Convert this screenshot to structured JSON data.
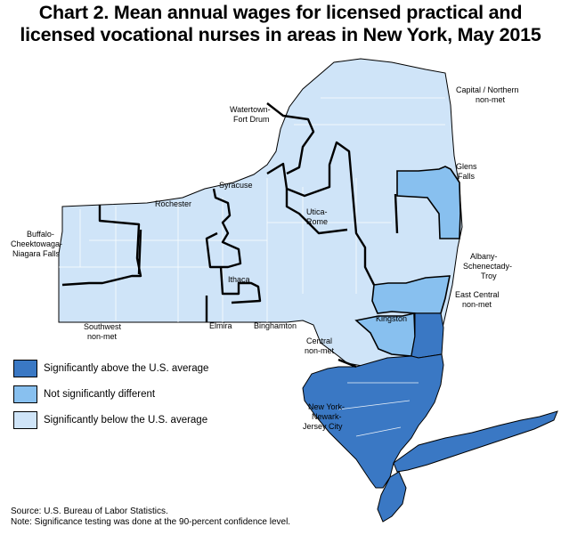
{
  "title": "Chart 2. Mean annual wages for licensed practical and licensed vocational nurses in areas in New York, May 2015",
  "title_line1": "Chart 2. Mean annual wages for licensed practical and",
  "title_line2": "licensed vocational nurses in areas in New York, May 2015",
  "colors": {
    "above": "#3a78c4",
    "not_different": "#88c0ef",
    "below": "#cfe4f8",
    "border": "#000000"
  },
  "legend": [
    {
      "key": "above",
      "label": "Significantly above the U.S. average"
    },
    {
      "key": "not_different",
      "label": "Not significantly different"
    },
    {
      "key": "below",
      "label": "Significantly below the U.S. average"
    }
  ],
  "areas": [
    {
      "id": "capital-northern",
      "lines": [
        "Capital / Northern",
        "non-met"
      ],
      "category": "below"
    },
    {
      "id": "watertown",
      "lines": [
        "Watertown-",
        "Fort Drum"
      ],
      "category": "below"
    },
    {
      "id": "glens-falls",
      "lines": [
        "Glens",
        "Falls"
      ],
      "category": "not_different"
    },
    {
      "id": "syracuse",
      "lines": [
        "Syracuse"
      ],
      "category": "below"
    },
    {
      "id": "rochester",
      "lines": [
        "Rochester"
      ],
      "category": "below"
    },
    {
      "id": "utica-rome",
      "lines": [
        "Utica-",
        "Rome"
      ],
      "category": "below"
    },
    {
      "id": "buffalo",
      "lines": [
        "Buffalo-",
        "Cheektowaga-",
        "Niagara Falls"
      ],
      "category": "below"
    },
    {
      "id": "albany",
      "lines": [
        "Albany-",
        "Schenectady-",
        "Troy"
      ],
      "category": "not_different"
    },
    {
      "id": "ithaca",
      "lines": [
        "Ithaca"
      ],
      "category": "below"
    },
    {
      "id": "east-central",
      "lines": [
        "East Central",
        "non-met"
      ],
      "category": "above"
    },
    {
      "id": "kingston",
      "lines": [
        "Kingston"
      ],
      "category": "not_different"
    },
    {
      "id": "southwest",
      "lines": [
        "Southwest",
        "non-met"
      ],
      "category": "below"
    },
    {
      "id": "elmira",
      "lines": [
        "Elmira"
      ],
      "category": "below"
    },
    {
      "id": "binghamton",
      "lines": [
        "Binghamton"
      ],
      "category": "below"
    },
    {
      "id": "central",
      "lines": [
        "Central",
        "non-met"
      ],
      "category": "below"
    },
    {
      "id": "nyc",
      "lines": [
        "New York-",
        "Newark-",
        "Jersey City"
      ],
      "category": "above"
    }
  ],
  "footnotes": {
    "source": "Source: U.S. Bureau of Labor Statistics.",
    "note": "Note: Significance testing was done at the 90-percent confidence level."
  }
}
